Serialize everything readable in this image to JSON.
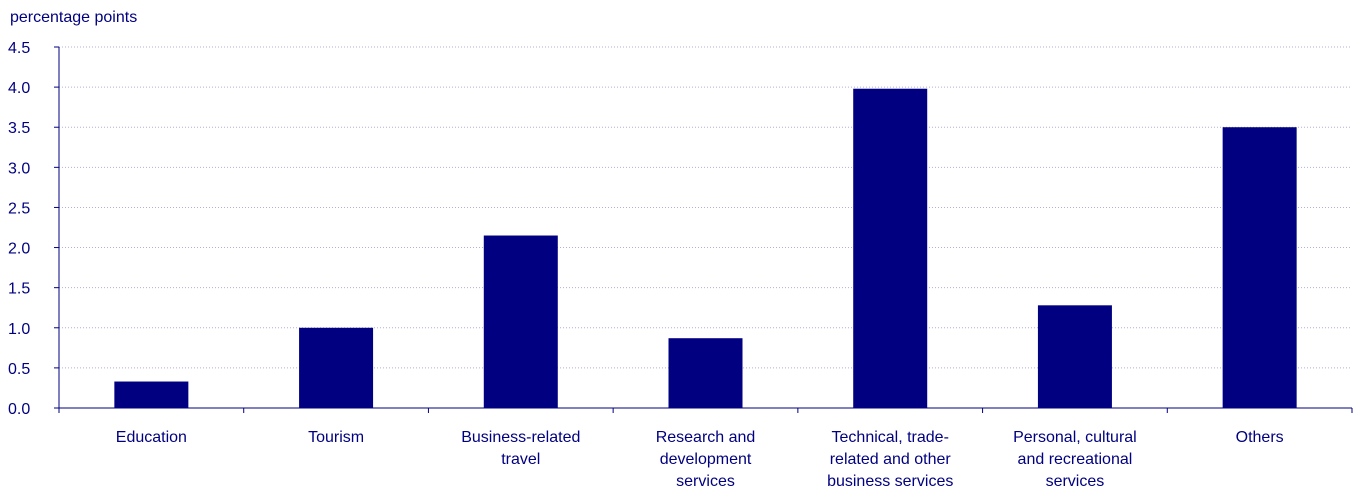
{
  "chart_data": {
    "type": "bar",
    "title": "",
    "ylabel": "percentage points",
    "xlabel": "",
    "ylim": [
      0,
      4.5
    ],
    "yticks": [
      "0.0",
      "0.5",
      "1.0",
      "1.5",
      "2.0",
      "2.5",
      "3.0",
      "3.5",
      "4.0",
      "4.5"
    ],
    "categories": [
      [
        "Education"
      ],
      [
        "Tourism"
      ],
      [
        "Business-related",
        "travel"
      ],
      [
        "Research and",
        "development",
        "services"
      ],
      [
        "Technical, trade-",
        "related and other",
        "business services"
      ],
      [
        "Personal, cultural",
        "and recreational",
        "services"
      ],
      [
        "Others"
      ]
    ],
    "values": [
      0.33,
      1.0,
      2.15,
      0.87,
      3.98,
      1.28,
      3.5
    ],
    "grid": true,
    "colors": {
      "bar": "#000080",
      "axis": "#000080",
      "grid": "#b0b0d8",
      "text": "#000080"
    }
  }
}
